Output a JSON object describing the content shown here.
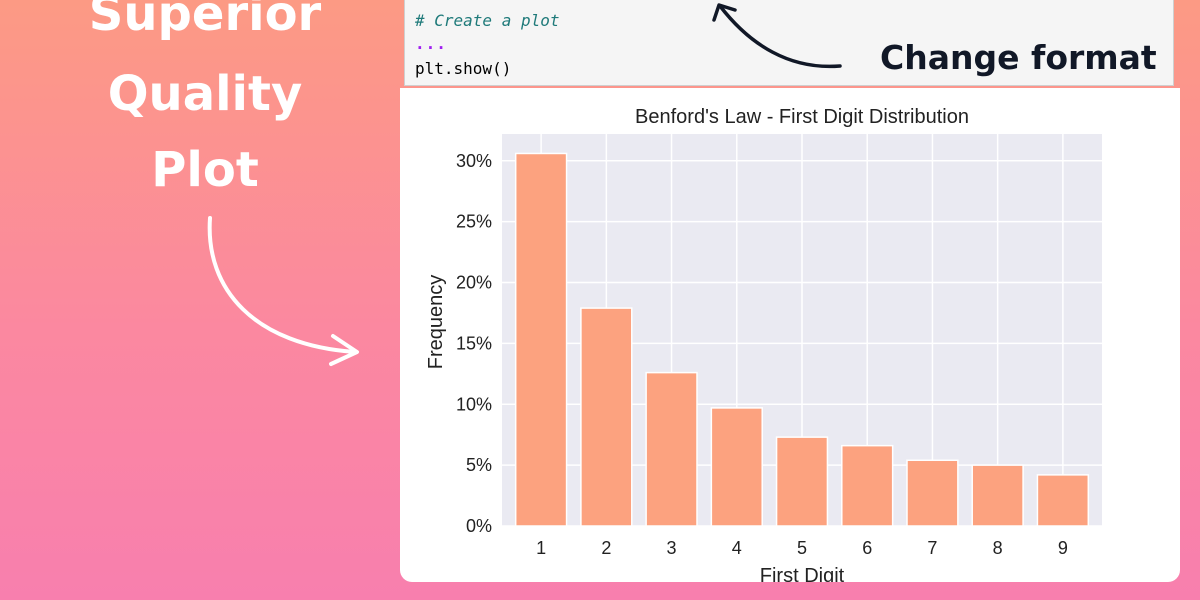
{
  "hero": {
    "lines": [
      "Superior",
      "Quality",
      "Plot"
    ]
  },
  "code_cell": {
    "comment": "# Create a plot",
    "ellipsis": "...",
    "call": "plt.show()"
  },
  "annotation": "Change format",
  "colors": {
    "bar": "#fca27f",
    "plot_bg": "#eaeaf2",
    "grid": "#ffffff",
    "hero_text": "#ffffff",
    "annotation_text": "#111827"
  },
  "chart_data": {
    "type": "bar",
    "title": "Benford's Law - First Digit Distribution",
    "xlabel": "First Digit",
    "ylabel": "Frequency",
    "categories": [
      "1",
      "2",
      "3",
      "4",
      "5",
      "6",
      "7",
      "8",
      "9"
    ],
    "values": [
      30.6,
      17.9,
      12.6,
      9.7,
      7.3,
      6.6,
      5.4,
      5.0,
      4.2
    ],
    "ylim": [
      0,
      30
    ],
    "yticks": [
      "0%",
      "5%",
      "10%",
      "15%",
      "20%",
      "25%",
      "30%"
    ],
    "grid": true
  }
}
